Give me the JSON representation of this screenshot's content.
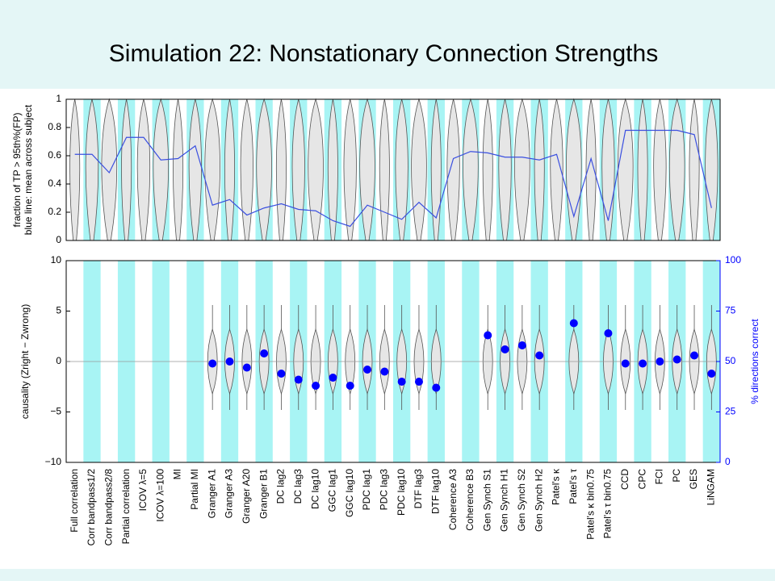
{
  "title": "Simulation 22: Nonstationary Connection Strengths",
  "chart_data": [
    {
      "type": "line",
      "ylabel": [
        "fraction of TP > 95th%(FP)",
        "blue line: mean across subject"
      ],
      "values": [
        0.61,
        0.61,
        0.48,
        0.73,
        0.73,
        0.57,
        0.58,
        0.67,
        0.25,
        0.29,
        0.18,
        0.23,
        0.26,
        0.22,
        0.21,
        0.14,
        0.1,
        0.25,
        0.2,
        0.15,
        0.27,
        0.16,
        0.58,
        0.63,
        0.62,
        0.59,
        0.59,
        0.57,
        0.61,
        0.17,
        0.58,
        0.14,
        0.78,
        0.78,
        0.78,
        0.78,
        0.75,
        0.23
      ],
      "color": "#3a4fe0",
      "band_color": "#a8f4f4",
      "ylim": [
        0,
        1
      ],
      "yticks": [
        0,
        0.2,
        0.4,
        0.6,
        0.8,
        1
      ]
    },
    {
      "type": "dot",
      "ylabel": "causality  (Zright − Zwrong)",
      "y2label": "% directions correct",
      "categories": [
        "Full correlation",
        "Corr bandpass1/2",
        "Corr bandpass2/8",
        "Partial correlation",
        "ICOV λ=5",
        "ICOV λ=100",
        "MI",
        "Partial MI",
        "Granger A1",
        "Granger A3",
        "Granger A20",
        "Granger B1",
        "DC lag2",
        "DC lag3",
        "DC lag10",
        "GGC lag1",
        "GGC lag10",
        "PDC lag1",
        "PDC lag3",
        "PDC lag10",
        "DTF lag3",
        "DTF lag10",
        "Coherence A3",
        "Coherence B3",
        "Gen Synch S1",
        "Gen Synch H1",
        "Gen Synch S2",
        "Gen Synch H2",
        "Patel's κ",
        "Patel's τ",
        "Patel's κ bin0.75",
        "Patel's τ bin0.75",
        "CCD",
        "CPC",
        "FCI",
        "PC",
        "GES",
        "LiNGAM"
      ],
      "values": [
        null,
        null,
        null,
        null,
        null,
        null,
        null,
        null,
        49,
        50,
        47,
        54,
        44,
        41,
        38,
        42,
        38,
        46,
        45,
        40,
        40,
        37,
        null,
        null,
        63,
        56,
        58,
        53,
        null,
        69,
        null,
        64,
        49,
        49,
        50,
        51,
        53,
        44
      ],
      "axis": "y2",
      "color": "#0000ff",
      "band_color": "#a8f4f4",
      "ylim": [
        -10,
        10
      ],
      "yticks": [
        {
          "value": -10,
          "label": "−10"
        },
        {
          "value": -5,
          "label": "−5"
        },
        0,
        5,
        10
      ],
      "y2lim": [
        0,
        100
      ],
      "y2ticks": [
        0,
        25,
        50,
        75,
        100
      ],
      "y2color": "#0000ff"
    }
  ]
}
